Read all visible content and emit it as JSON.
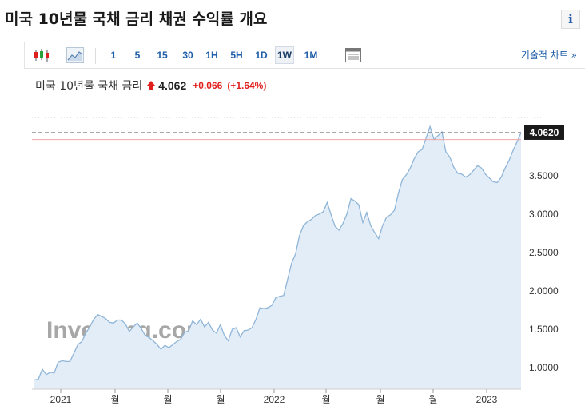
{
  "header": {
    "title": "미국 10년물 국채 금리  채권 수익률 개요",
    "info_label": "i"
  },
  "toolbar": {
    "candlestick_icon": "candlestick-icon",
    "area_icon": "area-chart-icon",
    "timeframes": [
      "1",
      "5",
      "15",
      "30",
      "1H",
      "5H",
      "1D",
      "1W",
      "1M"
    ],
    "active_timeframe": "1W",
    "settings_icon": "chart-settings-icon",
    "tech_chart_label": "기술적 차트 »"
  },
  "quote": {
    "name": "미국 10년물 국채 금리",
    "price": "4.062",
    "change": "+0.066",
    "change_pct": "(+1.64%)",
    "direction": "up",
    "up_color": "#e0201c"
  },
  "chart_data": {
    "type": "area",
    "x_tick_labels": [
      "2021",
      "월",
      "월",
      "월",
      "2022",
      "월",
      "월",
      "월",
      "2023"
    ],
    "y_tick_labels": [
      "1.0000",
      "1.5000",
      "2.0000",
      "2.5000",
      "3.0000",
      "3.5000"
    ],
    "ylim": [
      0.72,
      4.33
    ],
    "last_value_label": "4.0620",
    "reference_value": 3.97,
    "watermark": "Investing.com",
    "line_color": "#8fb5d8",
    "fill_color": "#e3edf7",
    "values": [
      0.84,
      0.85,
      0.98,
      0.91,
      0.94,
      0.93,
      1.07,
      1.09,
      1.08,
      1.08,
      1.19,
      1.3,
      1.34,
      1.45,
      1.53,
      1.63,
      1.69,
      1.67,
      1.64,
      1.59,
      1.58,
      1.62,
      1.62,
      1.57,
      1.47,
      1.53,
      1.58,
      1.51,
      1.42,
      1.39,
      1.35,
      1.3,
      1.24,
      1.29,
      1.26,
      1.3,
      1.34,
      1.37,
      1.46,
      1.48,
      1.61,
      1.56,
      1.63,
      1.53,
      1.59,
      1.49,
      1.45,
      1.56,
      1.42,
      1.35,
      1.5,
      1.52,
      1.4,
      1.48,
      1.49,
      1.52,
      1.63,
      1.78,
      1.77,
      1.78,
      1.81,
      1.91,
      1.93,
      1.94,
      2.15,
      2.36,
      2.48,
      2.72,
      2.85,
      2.9,
      2.93,
      2.98,
      3.0,
      3.03,
      3.15,
      2.99,
      2.84,
      2.79,
      2.88,
      3.0,
      3.2,
      3.17,
      3.12,
      2.89,
      3.02,
      2.85,
      2.76,
      2.68,
      2.85,
      2.96,
      2.99,
      3.05,
      3.27,
      3.45,
      3.51,
      3.6,
      3.72,
      3.81,
      3.84,
      3.99,
      4.14,
      3.97,
      4.02,
      4.07,
      3.81,
      3.74,
      3.61,
      3.53,
      3.52,
      3.48,
      3.51,
      3.57,
      3.63,
      3.6,
      3.52,
      3.47,
      3.42,
      3.41,
      3.48,
      3.6,
      3.7,
      3.83,
      3.94,
      4.06
    ]
  }
}
